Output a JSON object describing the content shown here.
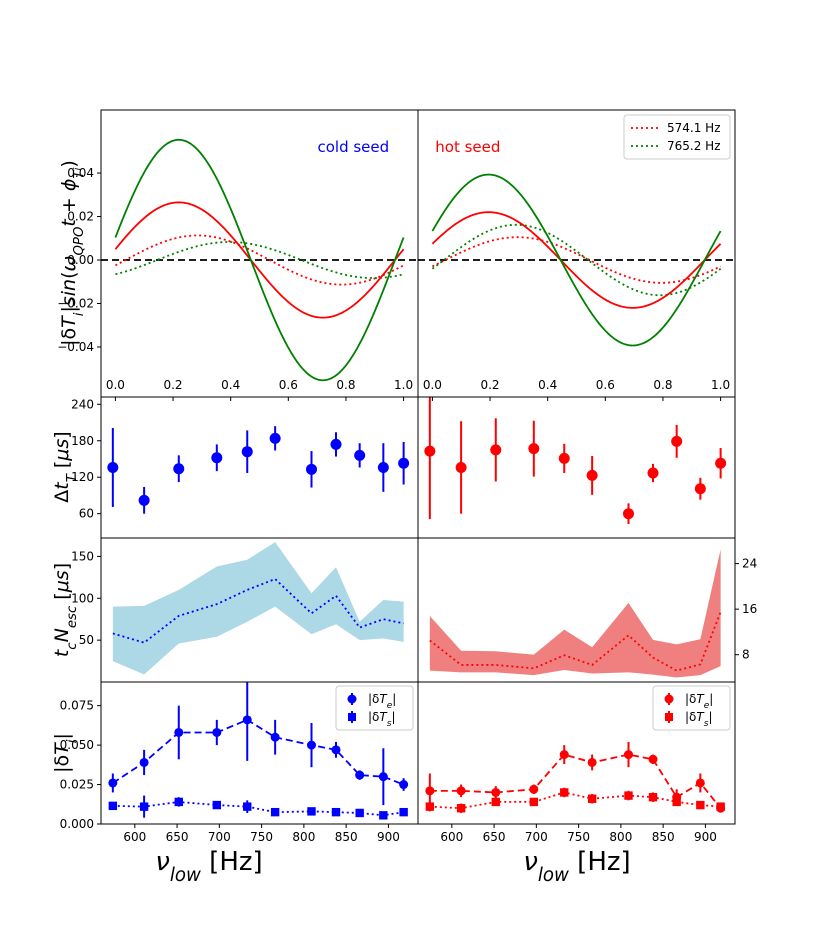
{
  "chart_data": [
    {
      "id": "top-left",
      "type": "line",
      "title": "",
      "annotation": "cold seed",
      "annotation_color": "#0000ff",
      "ylabel": "|δT_i|sin(ω_QPO t + φ_Ti)",
      "xlim": [
        -0.05,
        1.05
      ],
      "ylim": [
        -0.063,
        0.069
      ],
      "xticks": [
        "0.0",
        "0.2",
        "0.4",
        "0.6",
        "0.8",
        "1.0"
      ],
      "yticks": [
        "−0.04",
        "−0.02",
        "0.00",
        "0.02",
        "0.04"
      ],
      "ytick_values": [
        -0.04,
        -0.02,
        0.0,
        0.02,
        0.04
      ],
      "xtick_values": [
        0,
        0.2,
        0.4,
        0.6,
        0.8,
        1.0
      ],
      "hline": 0,
      "series": [
        {
          "name": "574.1 Hz",
          "style": "dotted",
          "color": "#ff0000",
          "amplitude": 0.0113,
          "phase_peak": 0.285
        },
        {
          "name": "765.2 Hz",
          "style": "dotted",
          "color": "#008000",
          "amplitude": 0.0083,
          "phase_peak": 0.395
        },
        {
          "name": "574.1 Hz sum",
          "style": "solid",
          "color": "#ff0000",
          "amplitude": 0.0265,
          "phase_peak": 0.22
        },
        {
          "name": "765.2 Hz sum",
          "style": "solid",
          "color": "#008000",
          "amplitude": 0.0553,
          "phase_peak": 0.22
        }
      ]
    },
    {
      "id": "top-right",
      "type": "line",
      "annotation": "hot seed",
      "annotation_color": "#ff0000",
      "xlim": [
        -0.05,
        1.05
      ],
      "ylim": [
        -0.063,
        0.069
      ],
      "xticks": [
        "0.0",
        "0.2",
        "0.4",
        "0.6",
        "0.8",
        "1.0"
      ],
      "xtick_values": [
        0,
        0.2,
        0.4,
        0.6,
        0.8,
        1.0
      ],
      "hline": 0,
      "legend": [
        "574.1 Hz",
        "765.2 Hz"
      ],
      "series": [
        {
          "name": "574.1 Hz",
          "style": "dotted",
          "color": "#ff0000",
          "amplitude": 0.0105,
          "phase_peak": 0.295
        },
        {
          "name": "765.2 Hz",
          "style": "dotted",
          "color": "#008000",
          "amplitude": 0.0162,
          "phase_peak": 0.29
        },
        {
          "name": "574.1 Hz sum",
          "style": "solid",
          "color": "#ff0000",
          "amplitude": 0.022,
          "phase_peak": 0.195
        },
        {
          "name": "765.2 Hz sum",
          "style": "solid",
          "color": "#008000",
          "amplitude": 0.0393,
          "phase_peak": 0.195
        }
      ]
    },
    {
      "id": "row2-left",
      "type": "scatter",
      "ylabel": "Δt_T [μs]",
      "xlim": [
        560,
        935
      ],
      "ylim": [
        20,
        252
      ],
      "yticks": [
        "60",
        "120",
        "180",
        "240"
      ],
      "ytick_values": [
        60,
        120,
        180,
        240
      ],
      "color": "#0000ff",
      "x": [
        574,
        611,
        652,
        697,
        733,
        766,
        809,
        838,
        866,
        894,
        918
      ],
      "y": [
        136,
        82,
        134,
        152,
        162,
        184,
        133,
        174,
        156,
        136,
        143
      ],
      "err": [
        65,
        22,
        22,
        22,
        35,
        20,
        30,
        20,
        20,
        40,
        35
      ]
    },
    {
      "id": "row2-right",
      "type": "scatter",
      "xlim": [
        560,
        935
      ],
      "ylim": [
        20,
        252
      ],
      "color": "#ff0000",
      "x": [
        574,
        611,
        652,
        697,
        733,
        766,
        809,
        838,
        866,
        894,
        918
      ],
      "y": [
        163,
        136,
        165,
        167,
        151,
        123,
        60,
        127,
        179,
        101,
        143
      ],
      "err": [
        112,
        76,
        52,
        46,
        24,
        32,
        17,
        15,
        27,
        18,
        25
      ]
    },
    {
      "id": "row3-left",
      "type": "area",
      "ylabel": "t_c N_esc [μs]",
      "xlim": [
        560,
        935
      ],
      "ylim": [
        0,
        172
      ],
      "yticks": [
        "50",
        "100",
        "150"
      ],
      "ytick_values": [
        50,
        100,
        150
      ],
      "color": "#0000ff",
      "band_color": "#add8e6",
      "x": [
        574,
        611,
        652,
        697,
        733,
        766,
        809,
        838,
        866,
        894,
        918
      ],
      "y": [
        58,
        47,
        79,
        93,
        110,
        123,
        82,
        103,
        65,
        75,
        70
      ],
      "lower": [
        25,
        9,
        46,
        54,
        72,
        90,
        57,
        69,
        50,
        52,
        48
      ],
      "upper": [
        90,
        91,
        110,
        138,
        146,
        167,
        106,
        137,
        72,
        98,
        96
      ]
    },
    {
      "id": "row3-right",
      "type": "area",
      "xlim": [
        560,
        935
      ],
      "ylim": [
        3.2,
        28.5
      ],
      "yticks": [
        "8",
        "16",
        "24"
      ],
      "ytick_values": [
        8,
        16,
        24
      ],
      "color": "#ff0000",
      "band_color": "#f08080",
      "x": [
        574,
        611,
        652,
        697,
        733,
        766,
        809,
        838,
        866,
        894,
        918
      ],
      "y": [
        10.5,
        6.2,
        6.2,
        5.6,
        7.9,
        6.2,
        11.4,
        7.5,
        5.2,
        6.3,
        15.5
      ],
      "lower": [
        5.2,
        4.9,
        4.9,
        4.4,
        5.3,
        4.7,
        4.9,
        4.5,
        4.0,
        4.4,
        6.0
      ],
      "upper": [
        14.8,
        8.7,
        8.6,
        8.0,
        12.4,
        9.3,
        17.1,
        10.6,
        9.8,
        10.7,
        26.5
      ]
    },
    {
      "id": "row4-left",
      "type": "scatter",
      "ylabel": "|δT_i|",
      "xlabel": "ν_low [Hz]",
      "xlim": [
        560,
        935
      ],
      "ylim": [
        0,
        0.09
      ],
      "xticks": [
        "600",
        "650",
        "700",
        "750",
        "800",
        "850",
        "900"
      ],
      "xtick_values": [
        600,
        650,
        700,
        750,
        800,
        850,
        900
      ],
      "yticks": [
        "0.000",
        "0.025",
        "0.050",
        "0.075"
      ],
      "ytick_values": [
        0,
        0.025,
        0.05,
        0.075
      ],
      "color": "#0000ff",
      "legend": [
        "|δT_e|",
        "|δT_s|"
      ],
      "series": [
        {
          "name": "|δT_e|",
          "marker": "circle",
          "line": "dashed",
          "x": [
            574,
            611,
            652,
            697,
            733,
            766,
            809,
            838,
            866,
            894,
            918
          ],
          "y": [
            0.026,
            0.039,
            0.058,
            0.058,
            0.066,
            0.055,
            0.05,
            0.047,
            0.031,
            0.03,
            0.025
          ],
          "err": [
            0.006,
            0.008,
            0.017,
            0.008,
            0.026,
            0.011,
            0.014,
            0.005,
            0.003,
            0.018,
            0.004
          ]
        },
        {
          "name": "|δT_s|",
          "marker": "square",
          "line": "dotted",
          "x": [
            574,
            611,
            652,
            697,
            733,
            766,
            809,
            838,
            866,
            894,
            918
          ],
          "y": [
            0.0115,
            0.011,
            0.014,
            0.012,
            0.011,
            0.0075,
            0.008,
            0.0075,
            0.007,
            0.0055,
            0.0075
          ],
          "err": [
            0.002,
            0.007,
            0.003,
            0.002,
            0.004,
            0.002,
            0.001,
            0.001,
            0.001,
            0.001,
            0.001
          ]
        }
      ]
    },
    {
      "id": "row4-right",
      "type": "scatter",
      "xlabel": "ν_low [Hz]",
      "xlim": [
        560,
        935
      ],
      "ylim": [
        0,
        0.09
      ],
      "xticks": [
        "600",
        "650",
        "700",
        "750",
        "800",
        "850",
        "900"
      ],
      "xtick_values": [
        600,
        650,
        700,
        750,
        800,
        850,
        900
      ],
      "color": "#ff0000",
      "legend": [
        "|δT_e|",
        "|δT_s|"
      ],
      "series": [
        {
          "name": "|δT_e|",
          "marker": "circle",
          "line": "dashed",
          "x": [
            574,
            611,
            652,
            697,
            733,
            766,
            809,
            838,
            866,
            894,
            918
          ],
          "y": [
            0.021,
            0.021,
            0.02,
            0.022,
            0.044,
            0.039,
            0.044,
            0.041,
            0.017,
            0.026,
            0.01
          ],
          "err": [
            0.011,
            0.004,
            0.004,
            0.003,
            0.006,
            0.005,
            0.008,
            0.003,
            0.005,
            0.006,
            0.002
          ]
        },
        {
          "name": "|δT_s|",
          "marker": "square",
          "line": "dotted",
          "x": [
            574,
            611,
            652,
            697,
            733,
            766,
            809,
            838,
            866,
            894,
            918
          ],
          "y": [
            0.011,
            0.01,
            0.014,
            0.014,
            0.02,
            0.016,
            0.018,
            0.017,
            0.014,
            0.012,
            0.011
          ],
          "err": [
            0.003,
            0.003,
            0.002,
            0.002,
            0.003,
            0.003,
            0.003,
            0.003,
            0.002,
            0.002,
            0.002
          ]
        }
      ]
    }
  ]
}
